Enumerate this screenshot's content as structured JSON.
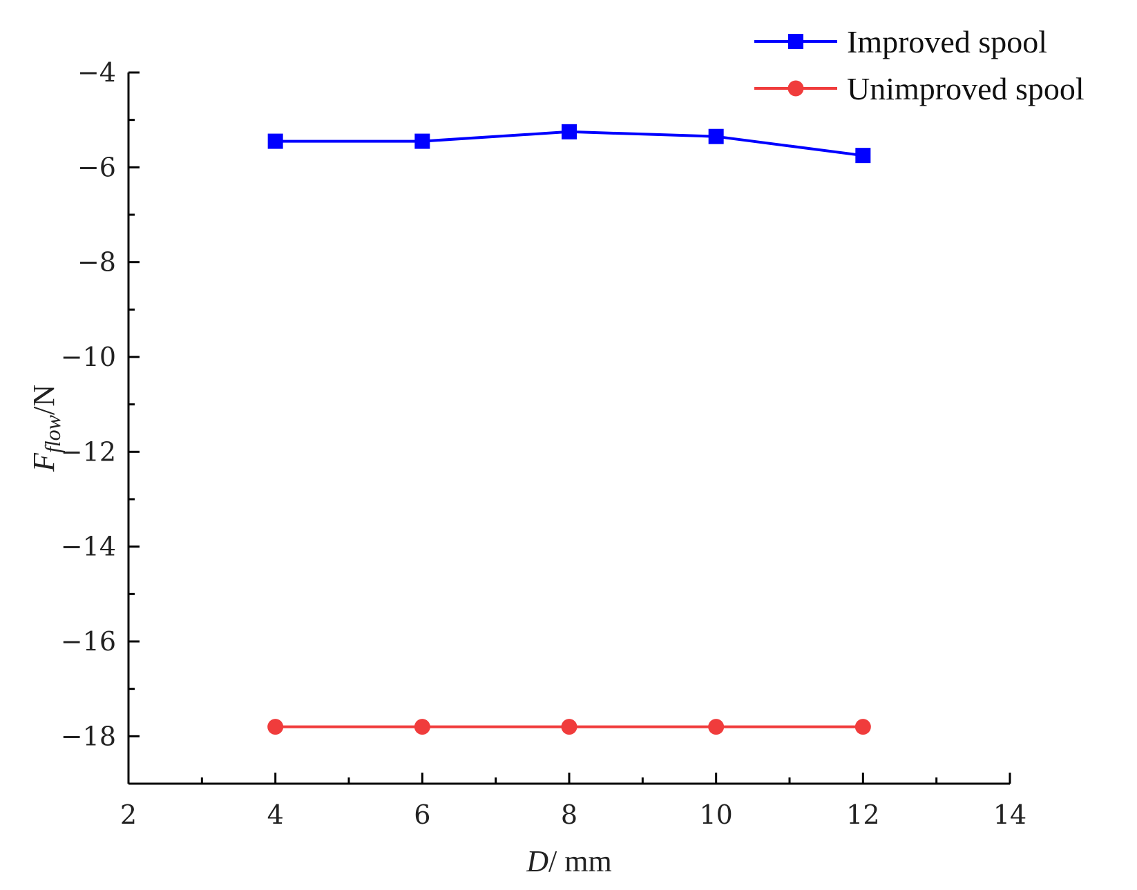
{
  "chart_data": {
    "type": "line",
    "x": [
      4,
      6,
      8,
      10,
      12
    ],
    "series": [
      {
        "name": "Improved spool",
        "values": [
          -5.45,
          -5.45,
          -5.25,
          -5.35,
          -5.75
        ],
        "color": "#0000ff",
        "marker": "square"
      },
      {
        "name": "Unimproved spool",
        "values": [
          -17.8,
          -17.8,
          -17.8,
          -17.8,
          -17.8
        ],
        "color": "#f03c3c",
        "marker": "circle"
      }
    ],
    "xlabel": {
      "main": "D",
      "unit": "/ mm"
    },
    "ylabel": {
      "main": "F",
      "sub": "flow",
      "unit": "/N"
    },
    "xlim": [
      2,
      14
    ],
    "ylim": [
      -19,
      -4
    ],
    "xticks": [
      2,
      4,
      6,
      8,
      10,
      12,
      14
    ],
    "xtick_labels": [
      "2",
      "4",
      "6",
      "8",
      "10",
      "12",
      "14"
    ],
    "yticks": [
      -4,
      -6,
      -8,
      -10,
      -12,
      -14,
      -16,
      -18
    ],
    "ytick_labels": [
      "−4",
      "−6",
      "−8",
      "−10",
      "−12",
      "−14",
      "−16",
      "−18"
    ],
    "grid": false,
    "legend_position": "top-right"
  }
}
